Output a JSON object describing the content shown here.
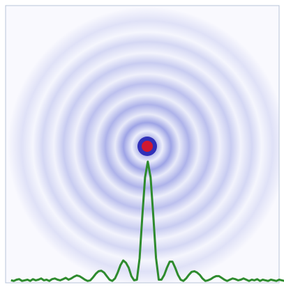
{
  "chart_data": {
    "type": "line",
    "x": [
      -100,
      -98,
      -96,
      -94,
      -92,
      -90,
      -88,
      -86,
      -84,
      -82,
      -80,
      -78,
      -76,
      -74,
      -72,
      -70,
      -68,
      -66,
      -64,
      -62,
      -60,
      -58,
      -56,
      -54,
      -52,
      -50,
      -48,
      -46,
      -44,
      -42,
      -40,
      -38,
      -36,
      -34,
      -32,
      -30,
      -28,
      -26,
      -24,
      -22,
      -20,
      -18,
      -16,
      -14,
      -12,
      -10,
      -8,
      -6,
      -4,
      -2,
      0,
      2,
      4,
      6,
      8,
      10,
      12,
      14,
      16,
      18,
      20,
      22,
      24,
      26,
      28,
      30,
      32,
      34,
      36,
      38,
      40,
      42,
      44,
      46,
      48,
      50,
      52,
      54,
      56,
      58,
      60,
      62,
      64,
      66,
      68,
      70,
      72,
      74,
      76,
      78,
      80,
      82,
      84,
      86,
      88,
      90,
      92,
      94,
      96,
      98,
      100
    ],
    "series": [
      {
        "color": "#2e8b2e",
        "values": [
          0.015,
          0.01,
          0.02,
          0.025,
          0.01,
          0.015,
          0.02,
          0.01,
          0.025,
          0.015,
          0.02,
          0.03,
          0.015,
          0.02,
          0.01,
          0.025,
          0.03,
          0.02,
          0.015,
          0.025,
          0.035,
          0.02,
          0.03,
          0.045,
          0.055,
          0.05,
          0.035,
          0.02,
          0.01,
          0.015,
          0.04,
          0.07,
          0.09,
          0.095,
          0.08,
          0.05,
          0.02,
          0.01,
          0.03,
          0.08,
          0.14,
          0.18,
          0.16,
          0.12,
          0.05,
          0.015,
          0.02,
          0.2,
          0.55,
          0.87,
          1,
          0.87,
          0.55,
          0.2,
          0.02,
          0.02,
          0.06,
          0.12,
          0.17,
          0.17,
          0.12,
          0.06,
          0.02,
          0.01,
          0.03,
          0.06,
          0.085,
          0.09,
          0.08,
          0.06,
          0.03,
          0.01,
          0.015,
          0.025,
          0.04,
          0.05,
          0.05,
          0.035,
          0.02,
          0.01,
          0.02,
          0.03,
          0.025,
          0.015,
          0.02,
          0.03,
          0.02,
          0.01,
          0.02,
          0.015,
          0.025,
          0.01,
          0.02,
          0.015,
          0.01,
          0.02,
          0.015,
          0.01,
          0.02,
          0.015,
          0.01
        ]
      }
    ],
    "xlim": [
      -104,
      96
    ],
    "ylim": [
      0,
      1
    ]
  }
}
